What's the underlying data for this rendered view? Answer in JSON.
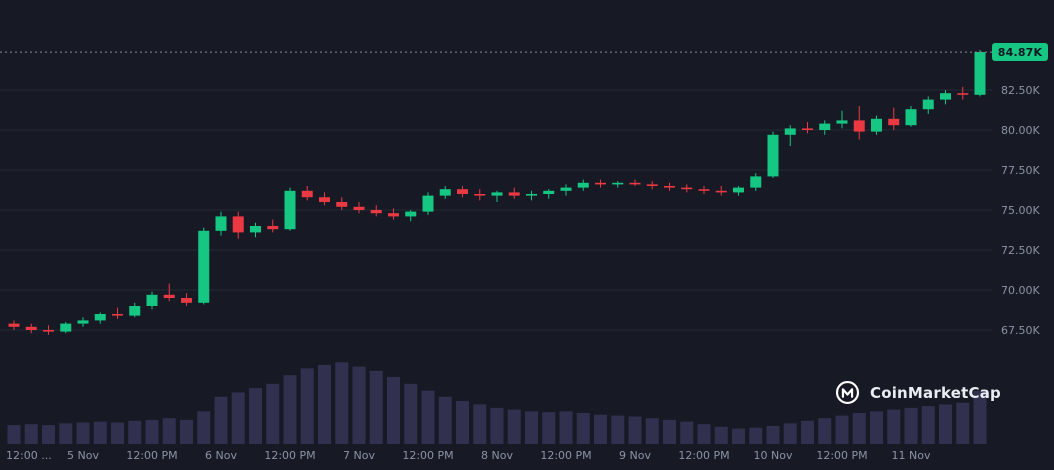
{
  "page": {
    "background": "#171a24"
  },
  "colors": {
    "up": "#16c784",
    "down": "#ea3943",
    "volume": "#32304f",
    "grid": "#252a36",
    "axis_text": "#8b93a5",
    "dashed_line": "#878ea1"
  },
  "price_line": {
    "label": "84.87K",
    "value": 84.87,
    "badge_bg": "#16c784",
    "badge_text_color": "#0f1722"
  },
  "watermark": {
    "text": "CoinMarketCap"
  },
  "axis": {
    "y_ticks": [
      {
        "label": "82.50K",
        "value": 82.5
      },
      {
        "label": "80.00K",
        "value": 80.0
      },
      {
        "label": "77.50K",
        "value": 77.5
      },
      {
        "label": "75.00K",
        "value": 75.0
      },
      {
        "label": "72.50K",
        "value": 72.5
      },
      {
        "label": "70.00K",
        "value": 70.0
      },
      {
        "label": "67.50K",
        "value": 67.5
      }
    ],
    "x_ticks": [
      {
        "label": "12:00 ...",
        "index": 0
      },
      {
        "label": "5 Nov",
        "index": 4
      },
      {
        "label": "12:00 PM",
        "index": 8
      },
      {
        "label": "6 Nov",
        "index": 12
      },
      {
        "label": "12:00 PM",
        "index": 16
      },
      {
        "label": "7 Nov",
        "index": 20
      },
      {
        "label": "12:00 PM",
        "index": 24
      },
      {
        "label": "8 Nov",
        "index": 28
      },
      {
        "label": "12:00 PM",
        "index": 32
      },
      {
        "label": "9 Nov",
        "index": 36
      },
      {
        "label": "12:00 PM",
        "index": 40
      },
      {
        "label": "10 Nov",
        "index": 44
      },
      {
        "label": "12:00 PM",
        "index": 48
      },
      {
        "label": "11 Nov",
        "index": 52
      }
    ]
  },
  "chart_data": {
    "type": "candlestick",
    "title": "Cryptocurrency price chart with volume (CoinMarketCap)",
    "interval": "3h",
    "y_unit": "thousand USD",
    "ylim": [
      66.3,
      85.8
    ],
    "y_gridlines": [
      67.5,
      70.0,
      72.5,
      75.0,
      77.5,
      80.0,
      82.5
    ],
    "current_price": 84.87,
    "current_price_label": "84.87K",
    "legend": "none",
    "grid": "horizontal-only",
    "x_tick_labels": [
      "12:00 ...",
      "5 Nov",
      "12:00 PM",
      "6 Nov",
      "12:00 PM",
      "7 Nov",
      "12:00 PM",
      "8 Nov",
      "12:00 PM",
      "9 Nov",
      "12:00 PM",
      "10 Nov",
      "12:00 PM",
      "11 Nov"
    ],
    "candles_ohlc": [
      [
        67.9,
        68.1,
        67.5,
        67.7
      ],
      [
        67.7,
        67.9,
        67.3,
        67.5
      ],
      [
        67.5,
        67.8,
        67.2,
        67.4
      ],
      [
        67.4,
        68.0,
        67.3,
        67.9
      ],
      [
        67.9,
        68.3,
        67.7,
        68.1
      ],
      [
        68.1,
        68.6,
        67.9,
        68.5
      ],
      [
        68.5,
        68.9,
        68.2,
        68.4
      ],
      [
        68.4,
        69.2,
        68.3,
        69.0
      ],
      [
        69.0,
        69.9,
        68.8,
        69.7
      ],
      [
        69.7,
        70.4,
        69.3,
        69.5
      ],
      [
        69.5,
        69.8,
        69.0,
        69.2
      ],
      [
        69.2,
        73.9,
        69.1,
        73.7
      ],
      [
        73.7,
        74.9,
        73.4,
        74.6
      ],
      [
        74.6,
        74.9,
        73.2,
        73.6
      ],
      [
        73.6,
        74.2,
        73.3,
        74.0
      ],
      [
        74.0,
        74.4,
        73.6,
        73.8
      ],
      [
        73.8,
        76.4,
        73.7,
        76.2
      ],
      [
        76.2,
        76.5,
        75.6,
        75.8
      ],
      [
        75.8,
        76.1,
        75.3,
        75.5
      ],
      [
        75.5,
        75.8,
        75.0,
        75.2
      ],
      [
        75.2,
        75.5,
        74.8,
        75.0
      ],
      [
        75.0,
        75.3,
        74.6,
        74.8
      ],
      [
        74.8,
        75.1,
        74.4,
        74.6
      ],
      [
        74.6,
        75.0,
        74.3,
        74.9
      ],
      [
        74.9,
        76.1,
        74.7,
        75.9
      ],
      [
        75.9,
        76.5,
        75.7,
        76.3
      ],
      [
        76.3,
        76.5,
        75.8,
        76.0
      ],
      [
        76.0,
        76.3,
        75.6,
        75.9
      ],
      [
        75.9,
        76.2,
        75.5,
        76.1
      ],
      [
        76.1,
        76.4,
        75.7,
        75.9
      ],
      [
        75.9,
        76.2,
        75.6,
        76.0
      ],
      [
        76.0,
        76.3,
        75.7,
        76.2
      ],
      [
        76.2,
        76.6,
        75.9,
        76.4
      ],
      [
        76.4,
        76.9,
        76.2,
        76.7
      ],
      [
        76.7,
        76.9,
        76.4,
        76.6
      ],
      [
        76.6,
        76.8,
        76.4,
        76.7
      ],
      [
        76.7,
        76.9,
        76.5,
        76.6
      ],
      [
        76.6,
        76.8,
        76.3,
        76.5
      ],
      [
        76.5,
        76.7,
        76.2,
        76.4
      ],
      [
        76.4,
        76.6,
        76.1,
        76.3
      ],
      [
        76.3,
        76.5,
        76.0,
        76.2
      ],
      [
        76.2,
        76.5,
        75.9,
        76.1
      ],
      [
        76.1,
        76.5,
        75.9,
        76.4
      ],
      [
        76.4,
        77.3,
        76.2,
        77.1
      ],
      [
        77.1,
        79.9,
        77.0,
        79.7
      ],
      [
        79.7,
        80.3,
        79.0,
        80.1
      ],
      [
        80.1,
        80.5,
        79.8,
        80.0
      ],
      [
        80.0,
        80.6,
        79.7,
        80.4
      ],
      [
        80.4,
        81.2,
        80.1,
        80.6
      ],
      [
        80.6,
        81.5,
        79.4,
        79.9
      ],
      [
        79.9,
        80.9,
        79.7,
        80.7
      ],
      [
        80.7,
        81.4,
        80.0,
        80.3
      ],
      [
        80.3,
        81.5,
        80.2,
        81.3
      ],
      [
        81.3,
        82.1,
        81.0,
        81.9
      ],
      [
        81.9,
        82.5,
        81.6,
        82.3
      ],
      [
        82.3,
        82.7,
        81.9,
        82.2
      ],
      [
        82.2,
        85.0,
        82.1,
        84.87
      ]
    ],
    "volumes_relative": [
      0.22,
      0.23,
      0.22,
      0.24,
      0.25,
      0.26,
      0.25,
      0.27,
      0.28,
      0.3,
      0.28,
      0.38,
      0.55,
      0.6,
      0.65,
      0.7,
      0.8,
      0.88,
      0.92,
      0.95,
      0.9,
      0.85,
      0.78,
      0.7,
      0.62,
      0.55,
      0.5,
      0.46,
      0.42,
      0.4,
      0.38,
      0.37,
      0.38,
      0.36,
      0.34,
      0.33,
      0.32,
      0.3,
      0.28,
      0.26,
      0.23,
      0.2,
      0.18,
      0.19,
      0.21,
      0.24,
      0.27,
      0.3,
      0.33,
      0.36,
      0.38,
      0.4,
      0.42,
      0.44,
      0.46,
      0.48,
      0.62
    ]
  }
}
